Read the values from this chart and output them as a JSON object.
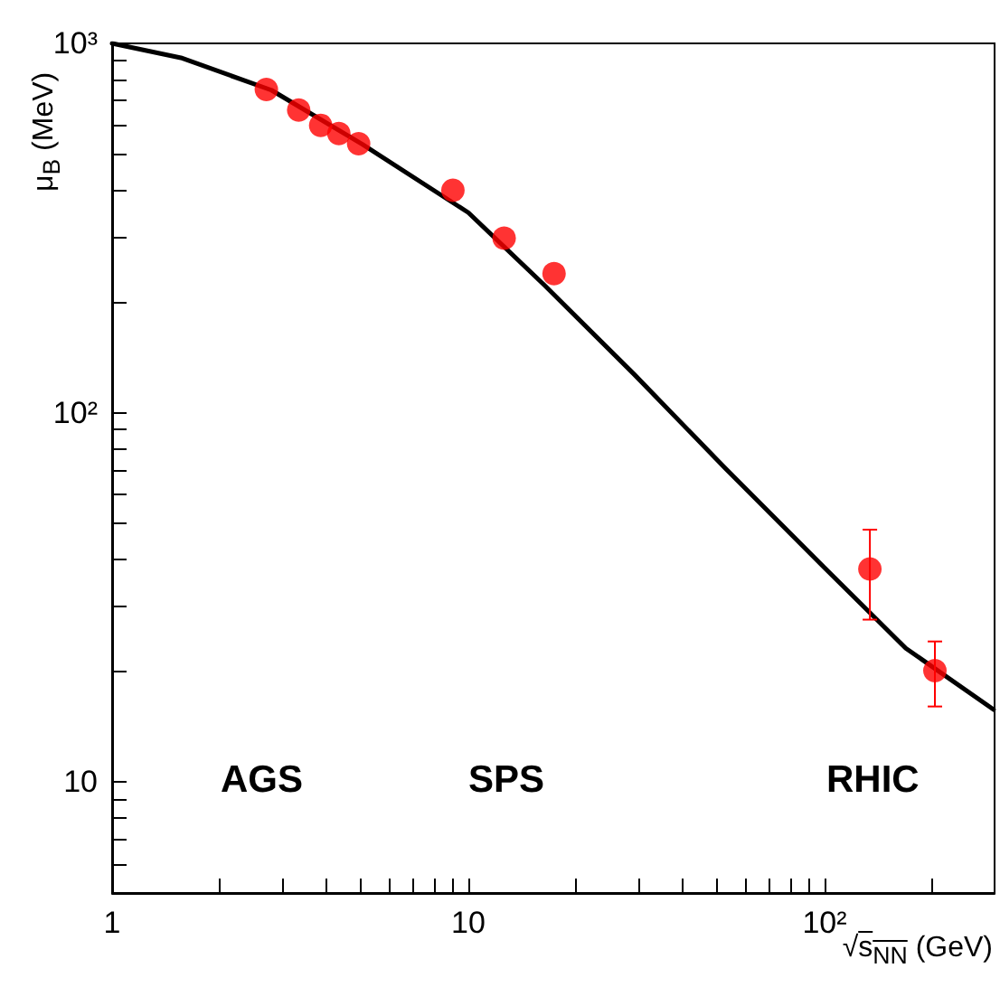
{
  "chart_data": {
    "type": "scatter",
    "xlabel": "√s$_{NN}$ (GeV)",
    "ylabel": "μ$_{B}$ (MeV)",
    "log": "xy",
    "grid": false,
    "marker": "circle",
    "xlim": [
      1,
      300
    ],
    "ylim": [
      5,
      1000
    ],
    "xticks": [
      1,
      {
        "value": 2,
        "label": null
      },
      {
        "value": 3,
        "label": null
      },
      {
        "value": 4,
        "label": null
      },
      {
        "value": 5,
        "label": null
      },
      {
        "value": 6,
        "label": null
      },
      {
        "value": 7,
        "label": null
      },
      {
        "value": 8,
        "label": null
      },
      {
        "value": 9,
        "label": null
      },
      10,
      {
        "value": 20,
        "label": null
      },
      {
        "value": 30,
        "label": null
      },
      {
        "value": 40,
        "label": null
      },
      {
        "value": 50,
        "label": null
      },
      {
        "value": 60,
        "label": null
      },
      {
        "value": 70,
        "label": null
      },
      {
        "value": 80,
        "label": null
      },
      {
        "value": 90,
        "label": null
      },
      {
        "value": 100,
        "label": "10²"
      },
      {
        "value": 200,
        "label": null
      }
    ],
    "yticks": [
      {
        "value": 6,
        "label": null
      },
      {
        "value": 7,
        "label": null
      },
      {
        "value": 8,
        "label": null
      },
      {
        "value": 9,
        "label": null
      },
      10,
      {
        "value": 20,
        "label": null
      },
      {
        "value": 30,
        "label": null
      },
      {
        "value": 40,
        "label": null
      },
      {
        "value": 50,
        "label": null
      },
      {
        "value": 60,
        "label": null
      },
      {
        "value": 70,
        "label": null
      },
      {
        "value": 80,
        "label": null
      },
      {
        "value": 90,
        "label": null
      },
      {
        "value": 100,
        "label": "10²"
      },
      {
        "value": 200,
        "label": null
      },
      {
        "value": 300,
        "label": null
      },
      {
        "value": 400,
        "label": null
      },
      {
        "value": 500,
        "label": null
      },
      {
        "value": 600,
        "label": null
      },
      {
        "value": 700,
        "label": null
      },
      {
        "value": 800,
        "label": null
      },
      {
        "value": 900,
        "label": null
      },
      {
        "value": 1000,
        "label": "10³"
      }
    ],
    "series": [
      {
        "type": "line",
        "color": "#000000",
        "marker": "none",
        "x": [
          1,
          1.56,
          2.8,
          5.04,
          10,
          16.3,
          29.2,
          52.6,
          100,
          169,
          298
        ],
        "values": [
          1000,
          914,
          747,
          533,
          348,
          222,
          127,
          70.7,
          38,
          23,
          15.7
        ]
      },
      {
        "color": "#ff0000",
        "x": [
          2.71,
          3.34,
          3.85,
          4.33,
          4.92,
          9.05,
          12.6,
          17.4,
          134,
          204
        ],
        "values": [
          750,
          660,
          600,
          570,
          535,
          400,
          297,
          238,
          37.7,
          20
        ],
        "errors": [
          null,
          null,
          null,
          null,
          null,
          null,
          null,
          null,
          [
            27.5,
            48.2
          ],
          [
            16,
            24
          ]
        ]
      }
    ],
    "annotations": [
      "AGS",
      "SPS",
      "RHIC"
    ]
  }
}
